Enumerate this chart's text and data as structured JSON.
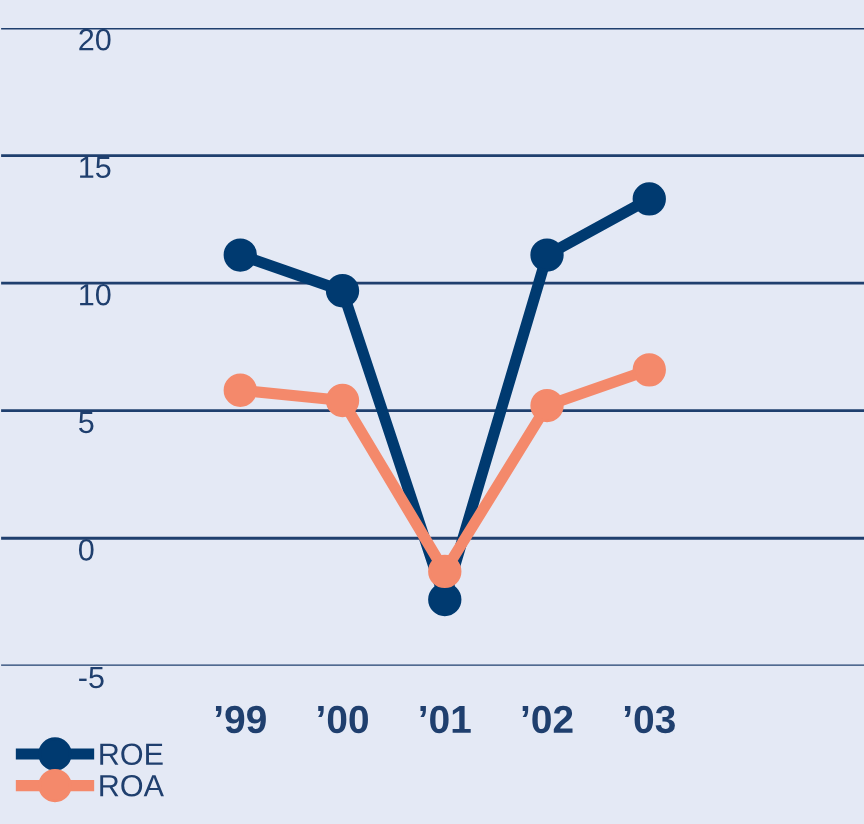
{
  "chart_data": {
    "type": "line",
    "categories": [
      "’99",
      "’00",
      "’01",
      "’02",
      "’03"
    ],
    "series": [
      {
        "name": "ROE",
        "color": "#003a70",
        "values": [
          11.1,
          9.7,
          -2.4,
          11.1,
          13.3
        ]
      },
      {
        "name": "ROA",
        "color": "#f4896b",
        "values": [
          5.8,
          5.4,
          -1.3,
          5.2,
          6.6
        ]
      }
    ],
    "ylim": [
      -5,
      20
    ],
    "yticks": [
      -5,
      0,
      5,
      10,
      15,
      20
    ],
    "grid": "y",
    "legend": "bottom left",
    "marker": "circle",
    "line_style": "solid"
  }
}
